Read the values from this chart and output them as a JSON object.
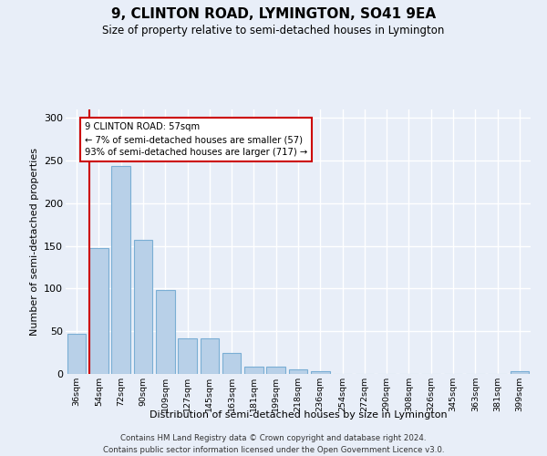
{
  "title1": "9, CLINTON ROAD, LYMINGTON, SO41 9EA",
  "title2": "Size of property relative to semi-detached houses in Lymington",
  "xlabel": "Distribution of semi-detached houses by size in Lymington",
  "ylabel": "Number of semi-detached properties",
  "bins": [
    "36sqm",
    "54sqm",
    "72sqm",
    "90sqm",
    "109sqm",
    "127sqm",
    "145sqm",
    "163sqm",
    "181sqm",
    "199sqm",
    "218sqm",
    "236sqm",
    "254sqm",
    "272sqm",
    "290sqm",
    "308sqm",
    "326sqm",
    "345sqm",
    "363sqm",
    "381sqm",
    "399sqm"
  ],
  "values": [
    47,
    148,
    244,
    157,
    98,
    42,
    42,
    25,
    9,
    9,
    5,
    3,
    0,
    0,
    0,
    0,
    0,
    0,
    0,
    0,
    3
  ],
  "bar_color": "#b8d0e8",
  "bar_edge_color": "#7aaed4",
  "vline_color": "#cc0000",
  "annotation_text": "9 CLINTON ROAD: 57sqm\n← 7% of semi-detached houses are smaller (57)\n93% of semi-detached houses are larger (717) →",
  "annotation_box_facecolor": "#ffffff",
  "annotation_box_edgecolor": "#cc0000",
  "ylim": [
    0,
    310
  ],
  "yticks": [
    0,
    50,
    100,
    150,
    200,
    250,
    300
  ],
  "background_color": "#e8eef8",
  "grid_color": "#ffffff",
  "footer": "Contains HM Land Registry data © Crown copyright and database right 2024.\nContains public sector information licensed under the Open Government Licence v3.0."
}
